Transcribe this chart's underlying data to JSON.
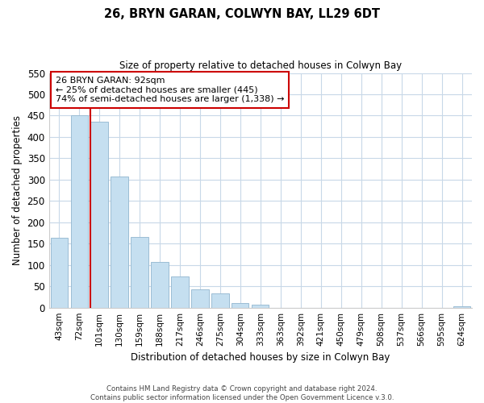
{
  "title": "26, BRYN GARAN, COLWYN BAY, LL29 6DT",
  "subtitle": "Size of property relative to detached houses in Colwyn Bay",
  "xlabel": "Distribution of detached houses by size in Colwyn Bay",
  "ylabel": "Number of detached properties",
  "bar_labels": [
    "43sqm",
    "72sqm",
    "101sqm",
    "130sqm",
    "159sqm",
    "188sqm",
    "217sqm",
    "246sqm",
    "275sqm",
    "304sqm",
    "333sqm",
    "363sqm",
    "392sqm",
    "421sqm",
    "450sqm",
    "479sqm",
    "508sqm",
    "537sqm",
    "566sqm",
    "595sqm",
    "624sqm"
  ],
  "bar_values": [
    163,
    450,
    435,
    308,
    165,
    108,
    74,
    43,
    33,
    10,
    7,
    0,
    0,
    0,
    0,
    0,
    0,
    0,
    0,
    0,
    3
  ],
  "bar_color": "#c5dff0",
  "bar_edge_color": "#9bbdd4",
  "vline_color": "#cc0000",
  "ylim": [
    0,
    550
  ],
  "yticks": [
    0,
    50,
    100,
    150,
    200,
    250,
    300,
    350,
    400,
    450,
    500,
    550
  ],
  "annotation_title": "26 BRYN GARAN: 92sqm",
  "annotation_line1": "← 25% of detached houses are smaller (445)",
  "annotation_line2": "74% of semi-detached houses are larger (1,338) →",
  "footer_line1": "Contains HM Land Registry data © Crown copyright and database right 2024.",
  "footer_line2": "Contains public sector information licensed under the Open Government Licence v.3.0.",
  "background_color": "#ffffff",
  "grid_color": "#c8d8e8"
}
